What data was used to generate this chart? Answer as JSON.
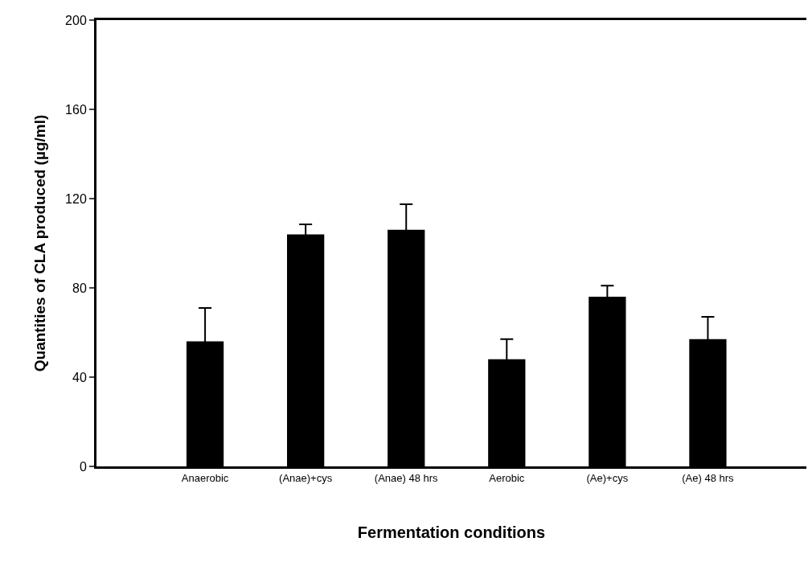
{
  "chart_data": {
    "type": "bar",
    "xlabel": "Fermentation conditions",
    "ylabel": "Quantities of CLA produced (µg/ml)",
    "categories": [
      "Anaerobic",
      "(Anae)+cys",
      "(Anae) 48 hrs",
      "Aerobic",
      "(Ae)+cys",
      "(Ae) 48 hrs"
    ],
    "values": [
      56,
      104,
      106,
      48,
      76,
      57
    ],
    "errors": [
      15,
      4.5,
      11.5,
      9,
      5,
      10
    ],
    "color": "#000000",
    "ylim": [
      0,
      200
    ],
    "yticks": [
      0,
      40,
      80,
      120,
      160,
      200
    ]
  }
}
